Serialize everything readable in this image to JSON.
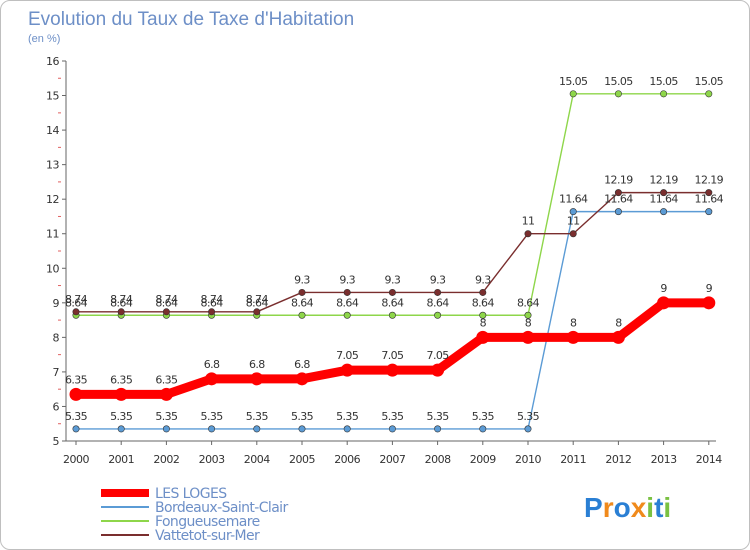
{
  "chart_data": {
    "type": "line",
    "title": "Evolution du Taux de Taxe d'Habitation",
    "subtitle": "(en %)",
    "xlabel": "",
    "ylabel": "",
    "ylim": [
      5,
      16
    ],
    "yticks": [
      5,
      6,
      7,
      8,
      9,
      10,
      11,
      12,
      13,
      14,
      15,
      16
    ],
    "grid": false,
    "legend_position": "bottom-left",
    "x": [
      2000,
      2001,
      2002,
      2003,
      2004,
      2005,
      2006,
      2007,
      2008,
      2009,
      2010,
      2011,
      2012,
      2013,
      2014
    ],
    "series": [
      {
        "name": "Bordeaux-Saint-Clair",
        "color": "#5b9bd5",
        "values": [
          5.35,
          5.35,
          5.35,
          5.35,
          5.35,
          5.35,
          5.35,
          5.35,
          5.35,
          5.35,
          5.35,
          11.64,
          11.64,
          11.64,
          11.64
        ],
        "labels": [
          "5.35",
          "5.35",
          "5.35",
          "5.35",
          "5.35",
          "5.35",
          "5.35",
          "5.35",
          "5.35",
          "5.35",
          "5.35",
          "11.64",
          "11.64",
          "11.64",
          "11.64"
        ]
      },
      {
        "name": "Fongueusemare",
        "color": "#8ed64a",
        "values": [
          8.64,
          8.64,
          8.64,
          8.64,
          8.64,
          8.64,
          8.64,
          8.64,
          8.64,
          8.64,
          8.64,
          15.05,
          15.05,
          15.05,
          15.05
        ],
        "labels": [
          "8.64",
          "8.64",
          "8.64",
          "8.64",
          "8.64",
          "8.64",
          "8.64",
          "8.64",
          "8.64",
          "8.64",
          "8.64",
          "15.05",
          "15.05",
          "15.05",
          "15.05"
        ]
      },
      {
        "name": "Vattetot-sur-Mer",
        "color": "#7a2e2e",
        "values": [
          8.74,
          8.74,
          8.74,
          8.74,
          8.74,
          9.3,
          9.3,
          9.3,
          9.3,
          9.3,
          11,
          11,
          12.19,
          12.19,
          12.19
        ],
        "labels": [
          "8.74",
          "8.74",
          "8.74",
          "8.74",
          "8.74",
          "9.3",
          "9.3",
          "9.3",
          "9.3",
          "9.3",
          "11",
          "11",
          "12.19",
          "12.19",
          "12.19"
        ]
      },
      {
        "name": "LES LOGES",
        "color": "#ff0000",
        "values": [
          6.35,
          6.35,
          6.35,
          6.8,
          6.8,
          6.8,
          7.05,
          7.05,
          7.05,
          8,
          8,
          8,
          8,
          9,
          9
        ],
        "labels": [
          "6.35",
          "6.35",
          "6.35",
          "6.8",
          "6.8",
          "6.8",
          "7.05",
          "7.05",
          "7.05",
          "8",
          "8",
          "8",
          "8",
          "9",
          "9"
        ]
      }
    ],
    "legend": [
      {
        "name": "LES LOGES",
        "color": "#ff0000"
      },
      {
        "name": "Bordeaux-Saint-Clair",
        "color": "#5b9bd5"
      },
      {
        "name": "Fongueusemare",
        "color": "#8ed64a"
      },
      {
        "name": "Vattetot-sur-Mer",
        "color": "#7a2e2e"
      }
    ]
  },
  "logo": {
    "text": "Proxiti",
    "letters": [
      "P",
      "r",
      "o",
      "x",
      "i",
      "t",
      "i"
    ],
    "colors": [
      "#2a7fd4",
      "#f08a1c",
      "#2a7fd4",
      "#f08a1c",
      "#7ac142",
      "#2a7fd4",
      "#7ac142"
    ]
  }
}
